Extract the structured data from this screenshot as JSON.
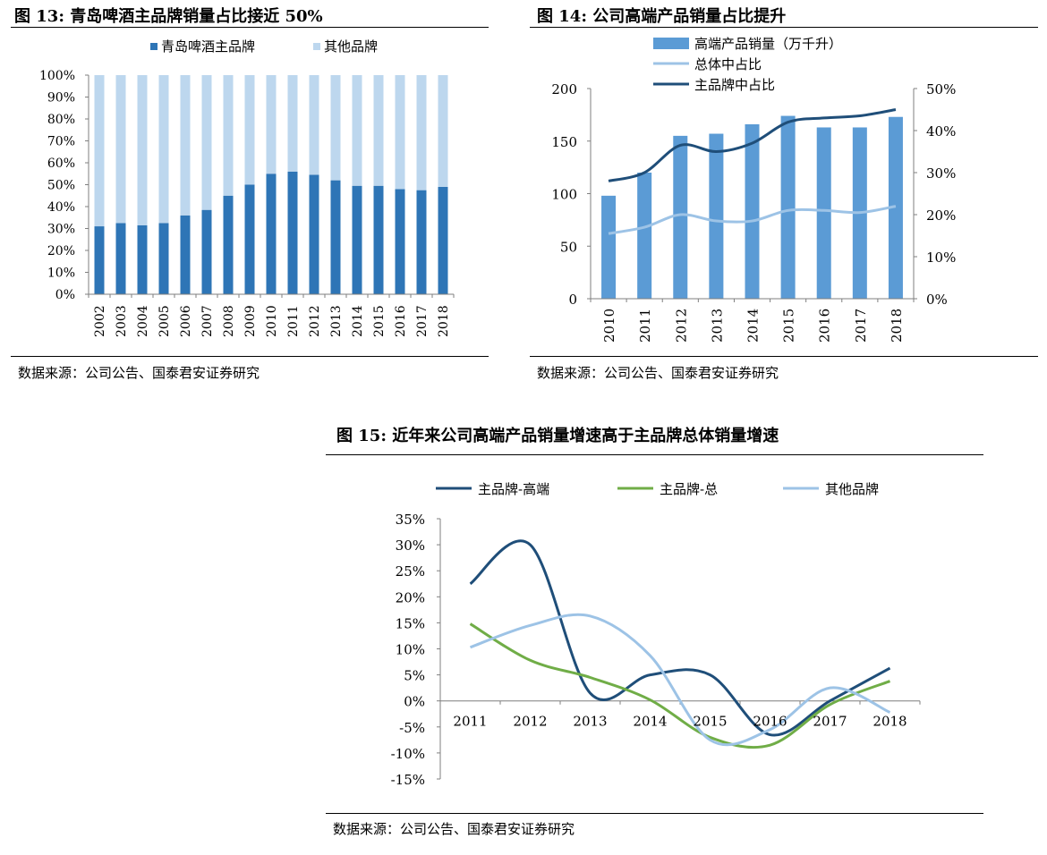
{
  "fig13": {
    "title": "图 13:  青岛啤酒主品牌销量占比接近 50%",
    "source": "数据来源：公司公告、国泰君安证券研究"
  },
  "fig14": {
    "title": "图 14:  公司高端产品销量占比提升",
    "source": "数据来源：公司公告、国泰君安证券研究"
  },
  "fig15": {
    "title": "图 15:  近年来公司高端产品销量增速高于主品牌总体销量增速",
    "source": "数据来源：公司公告、国泰君安证券研究"
  },
  "chart_data": [
    {
      "id": "fig13",
      "type": "bar",
      "stacked": true,
      "categories": [
        "2002",
        "2003",
        "2004",
        "2005",
        "2006",
        "2007",
        "2008",
        "2009",
        "2010",
        "2011",
        "2012",
        "2013",
        "2014",
        "2015",
        "2016",
        "2017",
        "2018"
      ],
      "series": [
        {
          "name": "青岛啤酒主品牌",
          "color": "#2e75b6",
          "values": [
            31,
            32.5,
            31.5,
            32.5,
            36,
            38.5,
            45,
            50,
            55,
            56,
            54.5,
            52,
            49.5,
            49.5,
            48,
            47.5,
            49
          ]
        },
        {
          "name": "其他品牌",
          "color": "#bdd7ee",
          "values": [
            69,
            67.5,
            68.5,
            67.5,
            64,
            61.5,
            55,
            50,
            45,
            44,
            45.5,
            48,
            50.5,
            50.5,
            52,
            52.5,
            51
          ]
        }
      ],
      "yticks": [
        "0%",
        "10%",
        "20%",
        "30%",
        "40%",
        "50%",
        "60%",
        "70%",
        "80%",
        "90%",
        "100%"
      ],
      "ylim": [
        0,
        100
      ],
      "legend": "top",
      "grid": false
    },
    {
      "id": "fig14",
      "type": "bar",
      "categories": [
        "2010",
        "2011",
        "2012",
        "2013",
        "2014",
        "2015",
        "2016",
        "2017",
        "2018"
      ],
      "series": [
        {
          "name": "高端产品销量（万千升）",
          "type": "bar",
          "axis": "left",
          "color": "#5b9bd5",
          "values": [
            98,
            120,
            155,
            157,
            166,
            174,
            163,
            163,
            173
          ]
        },
        {
          "name": "总体中占比",
          "type": "line",
          "axis": "right",
          "color": "#9dc3e6",
          "values": [
            15.5,
            17,
            20,
            18.5,
            18.5,
            21,
            21,
            20.5,
            22
          ]
        },
        {
          "name": "主品牌中占比",
          "type": "line",
          "axis": "right",
          "color": "#1f4e79",
          "values": [
            28,
            30,
            36.5,
            35,
            37,
            42,
            43,
            43.5,
            45
          ]
        }
      ],
      "yticks_left": [
        "0",
        "50",
        "100",
        "150",
        "200"
      ],
      "yticks_right": [
        "0%",
        "10%",
        "20%",
        "30%",
        "40%",
        "50%"
      ],
      "ylim_left": [
        0,
        200
      ],
      "ylim_right": [
        0,
        50
      ],
      "legend": "top",
      "grid": false
    },
    {
      "id": "fig15",
      "type": "line",
      "smooth": true,
      "categories": [
        "2011",
        "2012",
        "2013",
        "2014",
        "2015",
        "2016",
        "2017",
        "2018"
      ],
      "series": [
        {
          "name": "主品牌-高端",
          "color": "#1f4e79",
          "values": [
            22.5,
            30,
            1.5,
            5,
            5,
            -6.5,
            0,
            6.3
          ]
        },
        {
          "name": "主品牌-总",
          "color": "#70ad47",
          "values": [
            14.8,
            7.8,
            4.5,
            0.2,
            -7,
            -8.5,
            -0.7,
            3.8
          ]
        },
        {
          "name": "其他品牌",
          "color": "#9dc3e6",
          "values": [
            10.3,
            14.5,
            16.3,
            8.7,
            -7.5,
            -5.5,
            2.5,
            -2.2
          ]
        }
      ],
      "yticks": [
        "-15%",
        "-10%",
        "-5%",
        "0%",
        "5%",
        "10%",
        "15%",
        "20%",
        "25%",
        "30%",
        "35%"
      ],
      "ylim": [
        -15,
        35
      ],
      "legend": "top",
      "grid": false
    }
  ]
}
